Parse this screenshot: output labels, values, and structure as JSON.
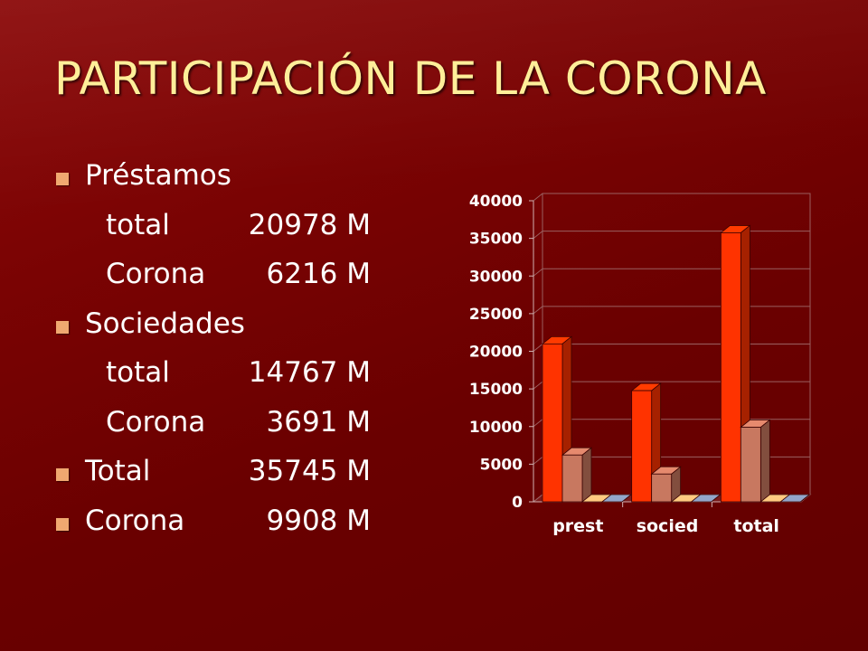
{
  "slide": {
    "title": "PARTICIPACIÓN DE LA CORONA",
    "bullets": {
      "prestamos": {
        "label": "Préstamos",
        "total_label": "total",
        "total_value": "20978 M",
        "corona_label": "Corona",
        "corona_value": "6216 M"
      },
      "sociedades": {
        "label": "Sociedades",
        "total_label": "total",
        "total_value": "14767 M",
        "corona_label": "Corona",
        "corona_value": "3691 M"
      },
      "total": {
        "label": "Total",
        "value": "35745 M"
      },
      "corona": {
        "label": "Corona",
        "value": "9908 M"
      }
    }
  },
  "chart_data": {
    "type": "bar",
    "categories": [
      "prest",
      "socied",
      "total"
    ],
    "series": [
      {
        "values": [
          20978,
          14767,
          35745
        ],
        "color": "#ff3300"
      },
      {
        "values": [
          6216,
          3691,
          9908
        ],
        "color": "#c87860"
      },
      {
        "values": [
          0,
          0,
          0
        ],
        "color": "#e8b070"
      },
      {
        "values": [
          0,
          0,
          0
        ],
        "color": "#8090b0"
      }
    ],
    "yticks": [
      "0",
      "5000",
      "10000",
      "15000",
      "20000",
      "25000",
      "30000",
      "35000",
      "40000"
    ],
    "ylim": [
      0,
      40000
    ],
    "grid": true
  }
}
